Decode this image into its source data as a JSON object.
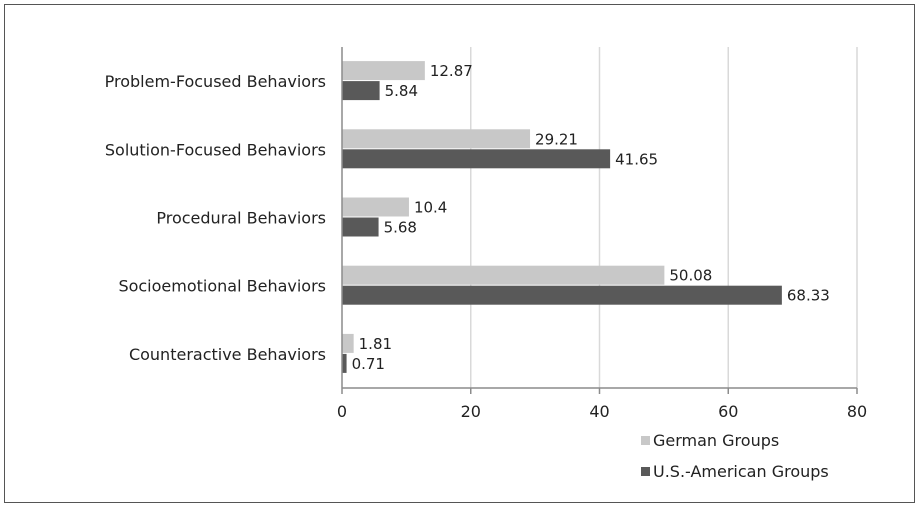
{
  "chart_data": {
    "type": "bar",
    "orientation": "horizontal",
    "categories": [
      "Problem-Focused Behaviors",
      "Solution-Focused Behaviors",
      "Procedural Behaviors",
      "Socioemotional Behaviors",
      "Counteractive Behaviors"
    ],
    "series": [
      {
        "name": "German Groups",
        "values": [
          12.87,
          29.21,
          10.4,
          50.08,
          1.81
        ],
        "color": "#c8c8c8"
      },
      {
        "name": "U.S.-American Groups",
        "values": [
          5.84,
          41.65,
          5.68,
          68.33,
          0.71
        ],
        "color": "#595959"
      }
    ],
    "xlim": [
      0,
      80
    ],
    "xticks": [
      0,
      20,
      40,
      60,
      80
    ],
    "grid": true,
    "legend": "bottom-right",
    "value_labels": [
      [
        "12.87",
        "29.21",
        "10.4",
        "50.08",
        "1.81"
      ],
      [
        "5.84",
        "41.65",
        "5.68",
        "68.33",
        "0.71"
      ]
    ]
  }
}
